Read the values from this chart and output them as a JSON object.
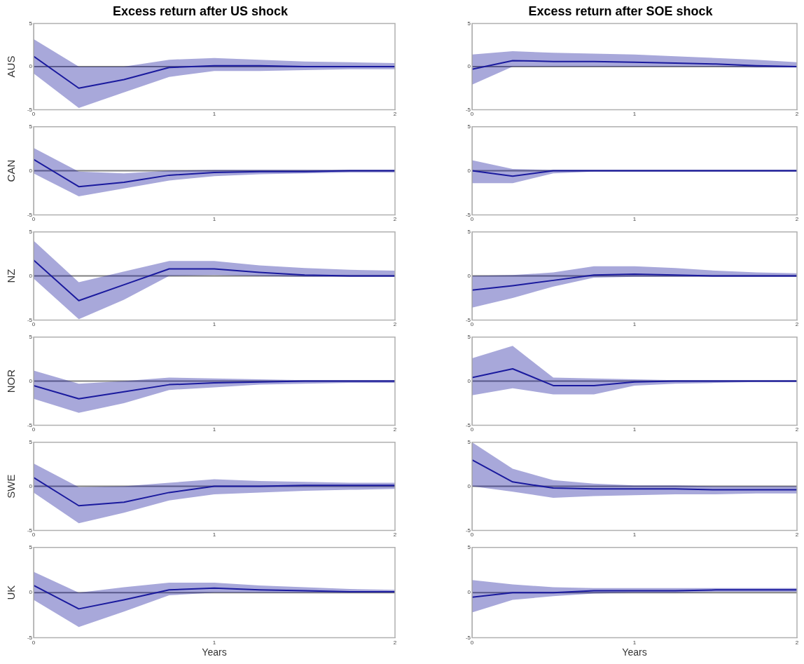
{
  "chart_data": [
    {
      "type": "line",
      "title": "Excess return after US shock",
      "ylabel": "AUS",
      "x": [
        0,
        0.25,
        0.5,
        0.75,
        1,
        1.25,
        1.5,
        1.75,
        2
      ],
      "xlim": [
        0,
        2
      ],
      "xticks": [
        0,
        1,
        2
      ],
      "ylim": [
        -5,
        5
      ],
      "yticks": [
        -5,
        0,
        5
      ],
      "grid": false,
      "legend": false,
      "ref_lines": [
        {
          "axis": "y",
          "value": 0,
          "color": "#808080"
        }
      ],
      "series": [
        {
          "color": "#1a1a9e",
          "values": [
            1.2,
            -2.5,
            -1.5,
            -0.1,
            0.1,
            0.1,
            0,
            0,
            0
          ],
          "lower": [
            -0.8,
            -4.8,
            -3,
            -1.2,
            -0.5,
            -0.5,
            -0.4,
            -0.3,
            -0.3
          ],
          "upper": [
            3.2,
            0,
            0,
            0.8,
            1,
            0.8,
            0.6,
            0.5,
            0.4
          ]
        }
      ]
    },
    {
      "type": "line",
      "title": "Excess return after SOE shock",
      "x": [
        0,
        0.25,
        0.5,
        0.75,
        1,
        1.25,
        1.5,
        1.75,
        2
      ],
      "xlim": [
        0,
        2
      ],
      "xticks": [
        0,
        1,
        2
      ],
      "ylim": [
        -5,
        5
      ],
      "yticks": [
        -5,
        0,
        5
      ],
      "grid": false,
      "legend": false,
      "ref_lines": [
        {
          "axis": "y",
          "value": 0,
          "color": "#808080"
        }
      ],
      "series": [
        {
          "color": "#1a1a9e",
          "values": [
            -0.3,
            0.7,
            0.6,
            0.6,
            0.5,
            0.4,
            0.3,
            0.1,
            0
          ],
          "lower": [
            -2.1,
            0,
            0,
            0,
            0,
            0,
            0,
            -0.1,
            -0.1
          ],
          "upper": [
            1.4,
            1.8,
            1.6,
            1.5,
            1.4,
            1.2,
            1,
            0.8,
            0.5
          ]
        }
      ]
    },
    {
      "type": "line",
      "ylabel": "CAN",
      "x": [
        0,
        0.25,
        0.5,
        0.75,
        1,
        1.25,
        1.5,
        1.75,
        2
      ],
      "xlim": [
        0,
        2
      ],
      "xticks": [
        0,
        1,
        2
      ],
      "ylim": [
        -5,
        5
      ],
      "yticks": [
        -5,
        0,
        5
      ],
      "grid": false,
      "legend": false,
      "ref_lines": [
        {
          "axis": "y",
          "value": 0,
          "color": "#808080"
        }
      ],
      "series": [
        {
          "color": "#1a1a9e",
          "values": [
            1.3,
            -1.8,
            -1.3,
            -0.5,
            -0.2,
            -0.1,
            -0.1,
            0,
            0
          ],
          "lower": [
            -0.3,
            -2.9,
            -2,
            -1.1,
            -0.6,
            -0.4,
            -0.3,
            -0.2,
            -0.2
          ],
          "upper": [
            2.6,
            -0.1,
            -0.3,
            0,
            0.1,
            0.1,
            0.1,
            0.1,
            0.1
          ]
        }
      ]
    },
    {
      "type": "line",
      "x": [
        0,
        0.25,
        0.5,
        0.75,
        1,
        1.25,
        1.5,
        1.75,
        2
      ],
      "xlim": [
        0,
        2
      ],
      "xticks": [
        0,
        1,
        2
      ],
      "ylim": [
        -5,
        5
      ],
      "yticks": [
        -5,
        0,
        5
      ],
      "grid": false,
      "legend": false,
      "ref_lines": [
        {
          "axis": "y",
          "value": 0,
          "color": "#808080"
        }
      ],
      "series": [
        {
          "color": "#1a1a9e",
          "values": [
            0,
            -0.6,
            0,
            0,
            0,
            0,
            0,
            0,
            0
          ],
          "lower": [
            -1.4,
            -1.4,
            -0.3,
            -0.1,
            -0.1,
            -0.1,
            -0.1,
            -0.1,
            -0.1
          ],
          "upper": [
            1.2,
            0.2,
            0.1,
            0.1,
            0.1,
            0.1,
            0.1,
            0.1,
            0.1
          ]
        }
      ]
    },
    {
      "type": "line",
      "ylabel": "NZ",
      "x": [
        0,
        0.25,
        0.5,
        0.75,
        1,
        1.25,
        1.5,
        1.75,
        2
      ],
      "xlim": [
        0,
        2
      ],
      "xticks": [
        0,
        1,
        2
      ],
      "ylim": [
        -5,
        5
      ],
      "yticks": [
        -5,
        0,
        5
      ],
      "grid": false,
      "legend": false,
      "ref_lines": [
        {
          "axis": "y",
          "value": 0,
          "color": "#808080"
        }
      ],
      "series": [
        {
          "color": "#1a1a9e",
          "values": [
            1.8,
            -2.8,
            -1,
            0.8,
            0.8,
            0.4,
            0.1,
            0,
            0
          ],
          "lower": [
            -0.3,
            -4.9,
            -2.7,
            0,
            0.1,
            0,
            -0.1,
            -0.1,
            -0.1
          ],
          "upper": [
            4,
            -0.7,
            0.5,
            1.7,
            1.7,
            1.2,
            0.9,
            0.7,
            0.6
          ]
        }
      ]
    },
    {
      "type": "line",
      "x": [
        0,
        0.25,
        0.5,
        0.75,
        1,
        1.25,
        1.5,
        1.75,
        2
      ],
      "xlim": [
        0,
        2
      ],
      "xticks": [
        0,
        1,
        2
      ],
      "ylim": [
        -5,
        5
      ],
      "yticks": [
        -5,
        0,
        5
      ],
      "grid": false,
      "legend": false,
      "ref_lines": [
        {
          "axis": "y",
          "value": 0,
          "color": "#808080"
        }
      ],
      "series": [
        {
          "color": "#1a1a9e",
          "values": [
            -1.6,
            -1.1,
            -0.5,
            0.1,
            0.2,
            0.1,
            0,
            0,
            0
          ],
          "lower": [
            -3.6,
            -2.5,
            -1.2,
            -0.2,
            -0.1,
            -0.1,
            -0.1,
            -0.1,
            -0.1
          ],
          "upper": [
            0,
            0.1,
            0.4,
            1.1,
            1.1,
            0.9,
            0.6,
            0.4,
            0.3
          ]
        }
      ]
    },
    {
      "type": "line",
      "ylabel": "NOR",
      "x": [
        0,
        0.25,
        0.5,
        0.75,
        1,
        1.25,
        1.5,
        1.75,
        2
      ],
      "xlim": [
        0,
        2
      ],
      "xticks": [
        0,
        1,
        2
      ],
      "ylim": [
        -5,
        5
      ],
      "yticks": [
        -5,
        0,
        5
      ],
      "grid": false,
      "legend": false,
      "ref_lines": [
        {
          "axis": "y",
          "value": 0,
          "color": "#808080"
        }
      ],
      "series": [
        {
          "color": "#1a1a9e",
          "values": [
            -0.5,
            -2,
            -1.2,
            -0.4,
            -0.2,
            -0.1,
            0,
            0,
            0
          ],
          "lower": [
            -2,
            -3.6,
            -2.5,
            -1,
            -0.7,
            -0.4,
            -0.3,
            -0.2,
            -0.2
          ],
          "upper": [
            1.2,
            -0.3,
            0,
            0.4,
            0.3,
            0.2,
            0.1,
            0.1,
            0.1
          ]
        }
      ]
    },
    {
      "type": "line",
      "x": [
        0,
        0.25,
        0.5,
        0.75,
        1,
        1.25,
        1.5,
        1.75,
        2
      ],
      "xlim": [
        0,
        2
      ],
      "xticks": [
        0,
        1,
        2
      ],
      "ylim": [
        -5,
        5
      ],
      "yticks": [
        -5,
        0,
        5
      ],
      "grid": false,
      "legend": false,
      "ref_lines": [
        {
          "axis": "y",
          "value": 0,
          "color": "#808080"
        }
      ],
      "series": [
        {
          "color": "#1a1a9e",
          "values": [
            0.4,
            1.4,
            -0.5,
            -0.5,
            -0.1,
            0,
            0,
            0,
            0
          ],
          "lower": [
            -1.6,
            -0.8,
            -1.5,
            -1.5,
            -0.5,
            -0.3,
            -0.2,
            -0.1,
            -0.1
          ],
          "upper": [
            2.6,
            4,
            0.4,
            0.3,
            0.2,
            0.1,
            0.1,
            0.1,
            0.1
          ]
        }
      ]
    },
    {
      "type": "line",
      "ylabel": "SWE",
      "x": [
        0,
        0.25,
        0.5,
        0.75,
        1,
        1.25,
        1.5,
        1.75,
        2
      ],
      "xlim": [
        0,
        2
      ],
      "xticks": [
        0,
        1,
        2
      ],
      "ylim": [
        -5,
        5
      ],
      "yticks": [
        -5,
        0,
        5
      ],
      "grid": false,
      "legend": false,
      "ref_lines": [
        {
          "axis": "y",
          "value": 0,
          "color": "#808080"
        }
      ],
      "series": [
        {
          "color": "#1a1a9e",
          "values": [
            1,
            -2.2,
            -1.8,
            -0.7,
            0,
            0,
            0.1,
            0.1,
            0.1
          ],
          "lower": [
            -0.7,
            -4.2,
            -3,
            -1.6,
            -0.9,
            -0.7,
            -0.5,
            -0.4,
            -0.3
          ],
          "upper": [
            2.6,
            -0.1,
            0,
            0.4,
            0.8,
            0.6,
            0.5,
            0.4,
            0.4
          ]
        }
      ]
    },
    {
      "type": "line",
      "x": [
        0,
        0.25,
        0.5,
        0.75,
        1,
        1.25,
        1.5,
        1.75,
        2
      ],
      "xlim": [
        0,
        2
      ],
      "xticks": [
        0,
        1,
        2
      ],
      "ylim": [
        -5,
        5
      ],
      "yticks": [
        -5,
        0,
        5
      ],
      "grid": false,
      "legend": false,
      "ref_lines": [
        {
          "axis": "y",
          "value": 0,
          "color": "#808080"
        }
      ],
      "series": [
        {
          "color": "#1a1a9e",
          "values": [
            3,
            0.5,
            -0.2,
            -0.3,
            -0.3,
            -0.3,
            -0.4,
            -0.4,
            -0.4
          ],
          "lower": [
            0,
            -0.6,
            -1.3,
            -1.1,
            -1,
            -0.9,
            -0.9,
            -0.8,
            -0.8
          ],
          "upper": [
            5,
            2,
            0.7,
            0.3,
            0.1,
            0.1,
            0,
            0,
            0
          ]
        }
      ]
    },
    {
      "type": "line",
      "ylabel": "UK",
      "xlabel": "Years",
      "x": [
        0,
        0.25,
        0.5,
        0.75,
        1,
        1.25,
        1.5,
        1.75,
        2
      ],
      "xlim": [
        0,
        2
      ],
      "xticks": [
        0,
        1,
        2
      ],
      "ylim": [
        -5,
        5
      ],
      "yticks": [
        -5,
        0,
        5
      ],
      "grid": false,
      "legend": false,
      "ref_lines": [
        {
          "axis": "y",
          "value": 0,
          "color": "#808080"
        }
      ],
      "series": [
        {
          "color": "#1a1a9e",
          "values": [
            0.8,
            -1.8,
            -0.8,
            0.3,
            0.5,
            0.3,
            0.2,
            0.1,
            0.1
          ],
          "lower": [
            -0.8,
            -3.8,
            -2.1,
            -0.3,
            0,
            0,
            0,
            0,
            0
          ],
          "upper": [
            2.3,
            0,
            0.6,
            1.1,
            1.1,
            0.8,
            0.6,
            0.4,
            0.3
          ]
        }
      ]
    },
    {
      "type": "line",
      "xlabel": "Years",
      "x": [
        0,
        0.25,
        0.5,
        0.75,
        1,
        1.25,
        1.5,
        1.75,
        2
      ],
      "xlim": [
        0,
        2
      ],
      "xticks": [
        0,
        1,
        2
      ],
      "ylim": [
        -5,
        5
      ],
      "yticks": [
        -5,
        0,
        5
      ],
      "grid": false,
      "legend": false,
      "ref_lines": [
        {
          "axis": "y",
          "value": 0,
          "color": "#808080"
        }
      ],
      "series": [
        {
          "color": "#1a1a9e",
          "values": [
            -0.5,
            0,
            0,
            0.2,
            0.2,
            0.2,
            0.3,
            0.3,
            0.3
          ],
          "lower": [
            -2.2,
            -0.8,
            -0.4,
            -0.1,
            0,
            0,
            0.1,
            0.1,
            0.1
          ],
          "upper": [
            1.4,
            0.9,
            0.6,
            0.5,
            0.5,
            0.5,
            0.5,
            0.5,
            0.5
          ]
        }
      ]
    }
  ]
}
